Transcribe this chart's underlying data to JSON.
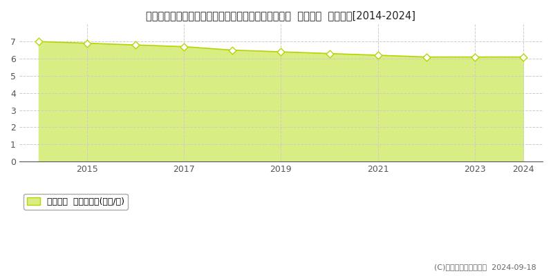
{
  "title": "和歌山県日高郡日高町大字荊木字萩之前６３５番２外  基準地価  地価推移[2014-2024]",
  "years": [
    2014,
    2015,
    2016,
    2017,
    2018,
    2019,
    2020,
    2021,
    2022,
    2023,
    2024
  ],
  "values": [
    7.0,
    6.9,
    6.8,
    6.7,
    6.5,
    6.4,
    6.3,
    6.2,
    6.1,
    6.1,
    6.1
  ],
  "line_color": "#b8d400",
  "fill_color": "#d8ed84",
  "marker_facecolor": "#ffffff",
  "marker_edgecolor": "#b8d400",
  "grid_color": "#cccccc",
  "background_color": "#ffffff",
  "ylim": [
    0,
    8
  ],
  "yticks": [
    0,
    1,
    2,
    3,
    4,
    5,
    6,
    7
  ],
  "xtick_labels": [
    "2015",
    "2017",
    "2019",
    "2021",
    "2023",
    "2024"
  ],
  "xtick_positions": [
    2015,
    2017,
    2019,
    2021,
    2023,
    2024
  ],
  "xlim_left": 2013.6,
  "xlim_right": 2024.4,
  "legend_label": "基準地価  平均坪単価(万円/坪)",
  "copyright_text": "(C)土地価格ドットコム  2024-09-18",
  "title_fontsize": 10.5,
  "axis_fontsize": 9,
  "legend_fontsize": 9,
  "copyright_fontsize": 8
}
